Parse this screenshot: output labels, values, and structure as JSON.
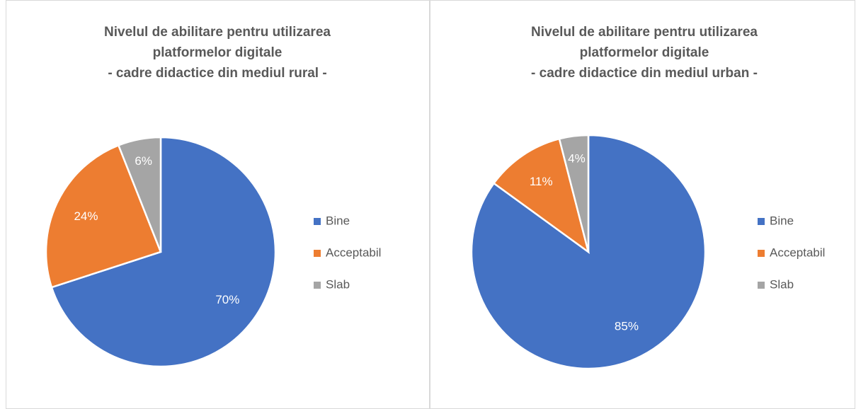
{
  "chart_data": [
    {
      "type": "pie",
      "title": [
        "Nivelul de abilitare pentru utilizarea",
        "platformelor digitale",
        "- cadre didactice din mediul rural -"
      ],
      "categories": [
        "Bine",
        "Acceptabil",
        "Slab"
      ],
      "values": [
        70,
        24,
        6
      ],
      "value_labels": [
        "70%",
        "24%",
        "6%"
      ],
      "colors": [
        "#4472c4",
        "#ed7d31",
        "#a5a5a5"
      ],
      "legend": "right"
    },
    {
      "type": "pie",
      "title": [
        "Nivelul de abilitare pentru utilizarea",
        "platformelor digitale",
        "- cadre didactice din mediul urban -"
      ],
      "categories": [
        "Bine",
        "Acceptabil",
        "Slab"
      ],
      "values": [
        85,
        11,
        4
      ],
      "value_labels": [
        "85%",
        "11%",
        "4%"
      ],
      "colors": [
        "#4472c4",
        "#ed7d31",
        "#a5a5a5"
      ],
      "legend": "right"
    }
  ]
}
